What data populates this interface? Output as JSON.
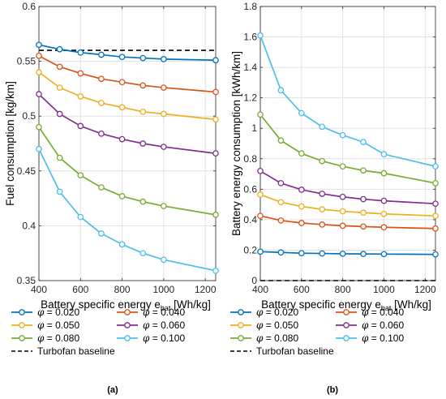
{
  "figure": {
    "panel_labels": [
      "(a)",
      "(b)"
    ]
  },
  "legend": {
    "entries": [
      {
        "symbol": "φ",
        "value": "0.020",
        "color": "#0072BD"
      },
      {
        "symbol": "φ",
        "value": "0.040",
        "color": "#D95319"
      },
      {
        "symbol": "φ",
        "value": "0.050",
        "color": "#EDB120"
      },
      {
        "symbol": "φ",
        "value": "0.060",
        "color": "#7E2F8E"
      },
      {
        "symbol": "φ",
        "value": "0.080",
        "color": "#77AC30"
      },
      {
        "symbol": "φ",
        "value": "0.100",
        "color": "#4DBEEE"
      }
    ],
    "baseline_label": "Turbofan baseline",
    "baseline_color": "#000000"
  },
  "chart_data": [
    {
      "type": "line",
      "panel": "(a)",
      "xlabel": "Battery  specific  energy  e",
      "xlabel_sub": "bat",
      "xlabel_unit": "[Wh/kg]",
      "ylabel": "Fuel consumption [kg/km]",
      "xlim": [
        400,
        1250
      ],
      "ylim": [
        0.35,
        0.6
      ],
      "xticks": [
        400,
        600,
        800,
        1000,
        1200
      ],
      "yticks": [
        0.35,
        0.4,
        0.45,
        0.5,
        0.55,
        0.6
      ],
      "ytick_labels": [
        "0.35",
        "0.4",
        "0.45",
        "0.5",
        "0.55",
        "0.6"
      ],
      "grid": true,
      "x": [
        400,
        500,
        600,
        700,
        800,
        900,
        1000,
        1250
      ],
      "series": [
        {
          "name": "φ = 0.020",
          "color": "#0072BD",
          "values": [
            0.565,
            0.561,
            0.558,
            0.556,
            0.554,
            0.553,
            0.552,
            0.551
          ]
        },
        {
          "name": "φ = 0.040",
          "color": "#D95319",
          "values": [
            0.555,
            0.545,
            0.539,
            0.534,
            0.531,
            0.528,
            0.526,
            0.522
          ]
        },
        {
          "name": "φ = 0.050",
          "color": "#EDB120",
          "values": [
            0.54,
            0.526,
            0.518,
            0.512,
            0.508,
            0.504,
            0.502,
            0.497
          ]
        },
        {
          "name": "φ = 0.060",
          "color": "#7E2F8E",
          "values": [
            0.52,
            0.502,
            0.491,
            0.484,
            0.479,
            0.475,
            0.472,
            0.466
          ]
        },
        {
          "name": "φ = 0.080",
          "color": "#77AC30",
          "values": [
            0.49,
            0.462,
            0.446,
            0.435,
            0.427,
            0.422,
            0.418,
            0.41
          ]
        },
        {
          "name": "φ = 0.100",
          "color": "#4DBEEE",
          "values": [
            0.47,
            0.431,
            0.408,
            0.393,
            0.383,
            0.375,
            0.369,
            0.359
          ]
        }
      ],
      "baseline": {
        "name": "Turbofan baseline",
        "value": 0.56,
        "color": "#000000"
      }
    },
    {
      "type": "line",
      "panel": "(b)",
      "xlabel": "Battery  specific  energy  e",
      "xlabel_sub": "bat",
      "xlabel_unit": "[Wh/kg]",
      "ylabel": "Battery energy consumption [kWh/km]",
      "xlim": [
        400,
        1250
      ],
      "ylim": [
        0,
        1.8
      ],
      "xticks": [
        400,
        600,
        800,
        1000,
        1200
      ],
      "yticks": [
        0,
        0.2,
        0.4,
        0.6,
        0.8,
        1,
        1.2,
        1.4,
        1.6,
        1.8
      ],
      "ytick_labels": [
        "0",
        "0.2",
        "0.4",
        "0.6",
        "0.8",
        "1",
        "1.2",
        "1.4",
        "1.6",
        "1.8"
      ],
      "grid": true,
      "x": [
        400,
        500,
        600,
        700,
        800,
        900,
        1000,
        1250
      ],
      "series": [
        {
          "name": "φ = 0.020",
          "color": "#0072BD",
          "values": [
            0.19,
            0.185,
            0.18,
            0.178,
            0.176,
            0.175,
            0.174,
            0.172
          ]
        },
        {
          "name": "φ = 0.040",
          "color": "#D95319",
          "values": [
            0.425,
            0.395,
            0.378,
            0.368,
            0.36,
            0.355,
            0.35,
            0.342
          ]
        },
        {
          "name": "φ = 0.050",
          "color": "#EDB120",
          "values": [
            0.565,
            0.515,
            0.487,
            0.468,
            0.455,
            0.446,
            0.438,
            0.425
          ]
        },
        {
          "name": "φ = 0.060",
          "color": "#7E2F8E",
          "values": [
            0.72,
            0.64,
            0.597,
            0.57,
            0.55,
            0.535,
            0.524,
            0.505
          ]
        },
        {
          "name": "φ = 0.080",
          "color": "#77AC30",
          "values": [
            1.09,
            0.92,
            0.835,
            0.785,
            0.75,
            0.723,
            0.705,
            0.64
          ]
        },
        {
          "name": "φ = 0.100",
          "color": "#4DBEEE",
          "values": [
            1.61,
            1.25,
            1.1,
            1.01,
            0.955,
            0.91,
            0.83,
            0.75
          ]
        }
      ],
      "baseline": {
        "name": "Turbofan baseline",
        "value": 0,
        "color": "#000000"
      }
    }
  ]
}
